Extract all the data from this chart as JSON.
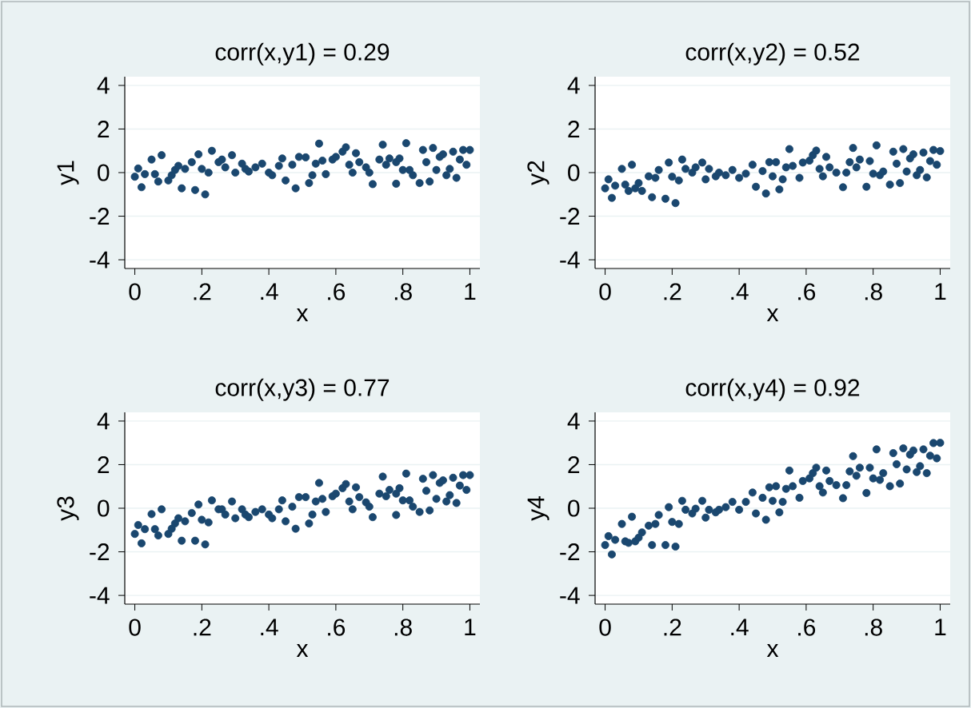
{
  "chart_data": [
    {
      "type": "scatter",
      "title": "corr(x,y1) = 0.29",
      "xlabel": "x",
      "ylabel": "y1",
      "color": "#1a476f",
      "marker": "circle",
      "grid": "y",
      "xlim": [
        -0.03,
        1.03
      ],
      "ylim": [
        -4.4,
        4.4
      ],
      "xticks": [
        0,
        {
          "value": 0.2,
          "label": ".2"
        },
        {
          "value": 0.4,
          "label": ".4"
        },
        {
          "value": 0.6,
          "label": ".6"
        },
        {
          "value": 0.8,
          "label": ".8"
        },
        1
      ],
      "yticks": [
        -4,
        -2,
        0,
        2,
        4
      ],
      "x": [
        0,
        0.01,
        0.02,
        0.03,
        0.05,
        0.06,
        0.07,
        0.08,
        0.1,
        0.11,
        0.12,
        0.13,
        0.14,
        0.15,
        0.17,
        0.18,
        0.19,
        0.2,
        0.21,
        0.22,
        0.23,
        0.25,
        0.26,
        0.27,
        0.29,
        0.3,
        0.32,
        0.33,
        0.34,
        0.36,
        0.38,
        0.4,
        0.41,
        0.43,
        0.44,
        0.45,
        0.47,
        0.48,
        0.49,
        0.51,
        0.52,
        0.53,
        0.54,
        0.55,
        0.56,
        0.57,
        0.59,
        0.6,
        0.62,
        0.63,
        0.64,
        0.65,
        0.66,
        0.67,
        0.69,
        0.7,
        0.71,
        0.73,
        0.74,
        0.75,
        0.76,
        0.78,
        0.78,
        0.79,
        0.8,
        0.81,
        0.82,
        0.83,
        0.85,
        0.86,
        0.87,
        0.88,
        0.89,
        0.9,
        0.91,
        0.92,
        0.93,
        0.94,
        0.95,
        0.96,
        0.97,
        0.98,
        0.99,
        1.0
      ],
      "values": [
        -0.19,
        0.19,
        -0.67,
        -0.07,
        0.6,
        -0.07,
        -0.41,
        0.8,
        -0.36,
        -0.12,
        0.12,
        0.31,
        -0.72,
        0.17,
        0.48,
        -0.8,
        0.84,
        0.17,
        -1.0,
        0,
        1.0,
        0.48,
        0.6,
        0.24,
        0.8,
        0,
        0.41,
        0.17,
        0.05,
        0.24,
        0.41,
        0,
        -0.12,
        0.31,
        0.65,
        -0.36,
        0.36,
        -0.72,
        0.72,
        0.7,
        -0.48,
        -0.12,
        0.41,
        1.33,
        0.55,
        -0.07,
        0.6,
        0.72,
        0.96,
        1.16,
        0.36,
        0,
        0.89,
        0.48,
        0.24,
        0,
        -0.53,
        0.6,
        1.28,
        0.36,
        0.65,
        0.48,
        -0.51,
        0.65,
        0.12,
        1.35,
        0.12,
        -0.12,
        -0.48,
        1.04,
        0.48,
        -0.41,
        1.13,
        0.12,
        0.72,
        0.84,
        -0.12,
        0.17,
        0.96,
        -0.24,
        0.6,
        1.04,
        0.36,
        1.04
      ]
    },
    {
      "type": "scatter",
      "title": "corr(x,y2) = 0.52",
      "xlabel": "x",
      "ylabel": "y2",
      "color": "#1a476f",
      "marker": "circle",
      "grid": "y",
      "xlim": [
        -0.03,
        1.03
      ],
      "ylim": [
        -4.4,
        4.4
      ],
      "xticks": [
        0,
        {
          "value": 0.2,
          "label": ".2"
        },
        {
          "value": 0.4,
          "label": ".4"
        },
        {
          "value": 0.6,
          "label": ".6"
        },
        {
          "value": 0.8,
          "label": ".8"
        },
        1
      ],
      "yticks": [
        -4,
        -2,
        0,
        2,
        4
      ],
      "x": [
        0,
        0.01,
        0.02,
        0.03,
        0.05,
        0.06,
        0.07,
        0.08,
        0.09,
        0.1,
        0.11,
        0.13,
        0.14,
        0.15,
        0.16,
        0.18,
        0.19,
        0.2,
        0.21,
        0.22,
        0.23,
        0.24,
        0.26,
        0.27,
        0.29,
        0.3,
        0.31,
        0.33,
        0.34,
        0.36,
        0.38,
        0.4,
        0.42,
        0.44,
        0.45,
        0.47,
        0.48,
        0.49,
        0.5,
        0.51,
        0.52,
        0.53,
        0.54,
        0.55,
        0.56,
        0.58,
        0.59,
        0.61,
        0.62,
        0.63,
        0.64,
        0.65,
        0.66,
        0.67,
        0.69,
        0.71,
        0.72,
        0.73,
        0.74,
        0.75,
        0.76,
        0.78,
        0.79,
        0.8,
        0.81,
        0.82,
        0.83,
        0.85,
        0.86,
        0.87,
        0.88,
        0.89,
        0.9,
        0.91,
        0.92,
        0.93,
        0.94,
        0.95,
        0.96,
        0.97,
        0.98,
        0.99,
        1.0
      ],
      "values": [
        -0.72,
        -0.31,
        -1.16,
        -0.6,
        0.17,
        -0.55,
        -0.84,
        0.36,
        -0.72,
        -0.48,
        -0.84,
        -0.17,
        -1.13,
        -0.24,
        0.12,
        -1.2,
        0.46,
        -0.19,
        -1.4,
        -0.36,
        0.6,
        0.17,
        0,
        0.24,
        0.46,
        -0.31,
        0.17,
        -0.17,
        0,
        -0.12,
        0.12,
        -0.24,
        -0.05,
        0.36,
        -0.65,
        0.07,
        -0.96,
        0.48,
        -0.17,
        0.48,
        -0.77,
        -0.31,
        0.24,
        1.08,
        0.31,
        -0.24,
        0.46,
        0.55,
        0.8,
        1.01,
        0.17,
        -0.17,
        0.72,
        0.24,
        0,
        -0.67,
        0,
        0.48,
        1.13,
        0.24,
        0.6,
        -0.65,
        0.53,
        -0.05,
        1.25,
        -0.12,
        0.05,
        -0.55,
        0.96,
        0.41,
        -0.48,
        1.08,
        0.05,
        0.65,
        0.84,
        -0.12,
        0.12,
        0.92,
        -0.22,
        0.53,
        1.04,
        0.36,
        0.99
      ]
    },
    {
      "type": "scatter",
      "title": "corr(x,y3) = 0.77",
      "xlabel": "x",
      "ylabel": "y3",
      "color": "#1a476f",
      "marker": "circle",
      "grid": "y",
      "xlim": [
        -0.03,
        1.03
      ],
      "ylim": [
        -4.4,
        4.4
      ],
      "xticks": [
        0,
        {
          "value": 0.2,
          "label": ".2"
        },
        {
          "value": 0.4,
          "label": ".4"
        },
        {
          "value": 0.6,
          "label": ".6"
        },
        {
          "value": 0.8,
          "label": ".8"
        },
        1
      ],
      "yticks": [
        -4,
        -2,
        0,
        2,
        4
      ],
      "x": [
        0,
        0.01,
        0.02,
        0.03,
        0.05,
        0.06,
        0.07,
        0.08,
        0.1,
        0.11,
        0.12,
        0.13,
        0.14,
        0.15,
        0.17,
        0.18,
        0.19,
        0.2,
        0.21,
        0.22,
        0.23,
        0.25,
        0.26,
        0.27,
        0.29,
        0.3,
        0.32,
        0.33,
        0.34,
        0.36,
        0.38,
        0.4,
        0.41,
        0.43,
        0.44,
        0.45,
        0.47,
        0.48,
        0.49,
        0.51,
        0.52,
        0.53,
        0.54,
        0.55,
        0.56,
        0.57,
        0.59,
        0.6,
        0.62,
        0.63,
        0.64,
        0.65,
        0.66,
        0.67,
        0.69,
        0.7,
        0.71,
        0.73,
        0.74,
        0.75,
        0.76,
        0.78,
        0.78,
        0.79,
        0.8,
        0.81,
        0.82,
        0.83,
        0.85,
        0.86,
        0.87,
        0.88,
        0.89,
        0.9,
        0.91,
        0.92,
        0.93,
        0.94,
        0.95,
        0.96,
        0.97,
        0.98,
        0.99,
        1.0
      ],
      "values": [
        -1.18,
        -0.77,
        -1.61,
        -0.96,
        -0.27,
        -0.96,
        -1.25,
        -0.05,
        -1.18,
        -0.94,
        -0.7,
        -0.46,
        -1.49,
        -0.6,
        -0.22,
        -1.49,
        0.17,
        -0.53,
        -1.66,
        -0.65,
        0.36,
        -0.05,
        -0.05,
        -0.29,
        0.31,
        -0.46,
        -0.05,
        -0.29,
        -0.41,
        -0.17,
        -0.05,
        -0.29,
        -0.46,
        -0.05,
        0.36,
        -0.6,
        0.07,
        -0.94,
        0.51,
        0.51,
        -0.7,
        -0.29,
        0.31,
        1.16,
        0.43,
        -0.17,
        0.55,
        0.67,
        0.92,
        1.11,
        0.31,
        -0.05,
        0.96,
        0.51,
        0.27,
        0.07,
        -0.41,
        0.67,
        1.45,
        0.55,
        0.84,
        0.67,
        -0.31,
        0.92,
        0.36,
        1.59,
        0.36,
        0.07,
        -0.17,
        1.35,
        0.8,
        -0.1,
        1.52,
        0.43,
        1.16,
        1.28,
        0.31,
        0.6,
        1.4,
        0.24,
        1.04,
        1.52,
        0.84,
        1.52
      ]
    },
    {
      "type": "scatter",
      "title": "corr(x,y4) = 0.92",
      "xlabel": "x",
      "ylabel": "y4",
      "color": "#1a476f",
      "marker": "circle",
      "grid": "y",
      "xlim": [
        -0.03,
        1.03
      ],
      "ylim": [
        -4.4,
        4.4
      ],
      "xticks": [
        0,
        {
          "value": 0.2,
          "label": ".2"
        },
        {
          "value": 0.4,
          "label": ".4"
        },
        {
          "value": 0.6,
          "label": ".6"
        },
        {
          "value": 0.8,
          "label": ".8"
        },
        1
      ],
      "yticks": [
        -4,
        -2,
        0,
        2,
        4
      ],
      "x": [
        0,
        0.01,
        0.02,
        0.03,
        0.05,
        0.06,
        0.07,
        0.08,
        0.09,
        0.1,
        0.11,
        0.13,
        0.14,
        0.15,
        0.16,
        0.18,
        0.19,
        0.2,
        0.21,
        0.22,
        0.23,
        0.24,
        0.26,
        0.27,
        0.29,
        0.3,
        0.31,
        0.33,
        0.34,
        0.36,
        0.38,
        0.4,
        0.42,
        0.44,
        0.45,
        0.47,
        0.48,
        0.49,
        0.5,
        0.51,
        0.52,
        0.53,
        0.54,
        0.55,
        0.56,
        0.58,
        0.59,
        0.61,
        0.62,
        0.63,
        0.64,
        0.65,
        0.66,
        0.67,
        0.69,
        0.71,
        0.72,
        0.73,
        0.74,
        0.75,
        0.76,
        0.78,
        0.79,
        0.8,
        0.81,
        0.82,
        0.83,
        0.85,
        0.86,
        0.87,
        0.88,
        0.89,
        0.9,
        0.91,
        0.92,
        0.93,
        0.94,
        0.95,
        0.96,
        0.97,
        0.98,
        0.99,
        1.0
      ],
      "values": [
        -1.69,
        -1.28,
        -2.12,
        -1.45,
        -0.72,
        -1.52,
        -1.59,
        -0.39,
        -1.52,
        -1.35,
        -1.11,
        -0.8,
        -1.69,
        -0.72,
        -0.31,
        -1.69,
        0.05,
        -0.63,
        -1.76,
        -0.72,
        0.34,
        -0.07,
        -0.24,
        -0.02,
        0.34,
        -0.43,
        -0.07,
        -0.19,
        -0.07,
        0.05,
        0.29,
        -0.07,
        0.29,
        0.72,
        -0.24,
        0.48,
        -0.53,
        0.96,
        0.34,
        1.01,
        -0.19,
        0.29,
        0.89,
        1.73,
        1.01,
        0.48,
        1.25,
        1.37,
        1.61,
        1.86,
        1.01,
        0.72,
        1.73,
        1.25,
        1.06,
        0.46,
        1.06,
        1.69,
        2.39,
        1.49,
        1.86,
        0.7,
        1.86,
        1.37,
        2.7,
        1.3,
        1.61,
        1.01,
        2.53,
        2.02,
        1.13,
        2.75,
        1.78,
        2.46,
        2.65,
        1.66,
        1.93,
        2.7,
        1.61,
        2.41,
        2.99,
        2.29,
        3.0
      ]
    }
  ]
}
